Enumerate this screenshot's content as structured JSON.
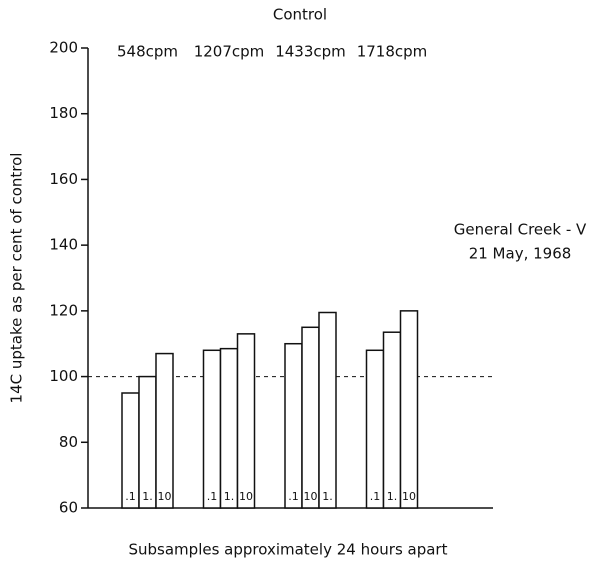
{
  "chart_data": {
    "type": "bar",
    "title": "Control",
    "y_label": "14C uptake as per cent of control",
    "x_label": "Subsamples approximately 24 hours apart",
    "annotation": [
      "General Creek - V",
      "21 May, 1968"
    ],
    "ylim": [
      60,
      200
    ],
    "yticks": [
      60,
      80,
      100,
      120,
      140,
      160,
      180,
      200
    ],
    "reference_line": 100,
    "color": "#ffffff",
    "groups": [
      {
        "label": "548cpm",
        "values": [
          95,
          100,
          107
        ],
        "bar_labels": [
          ".1",
          "1.",
          "10"
        ]
      },
      {
        "label": "1207cpm",
        "values": [
          108,
          108.5,
          113
        ],
        "bar_labels": [
          ".1",
          "1.",
          "10"
        ]
      },
      {
        "label": "1433cpm",
        "values": [
          110,
          115,
          119.5
        ],
        "bar_labels": [
          ".1",
          "10",
          "1."
        ]
      },
      {
        "label": "1718cpm",
        "values": [
          108,
          113.5,
          120
        ],
        "bar_labels": [
          ".1",
          "1.",
          "10"
        ]
      }
    ]
  }
}
